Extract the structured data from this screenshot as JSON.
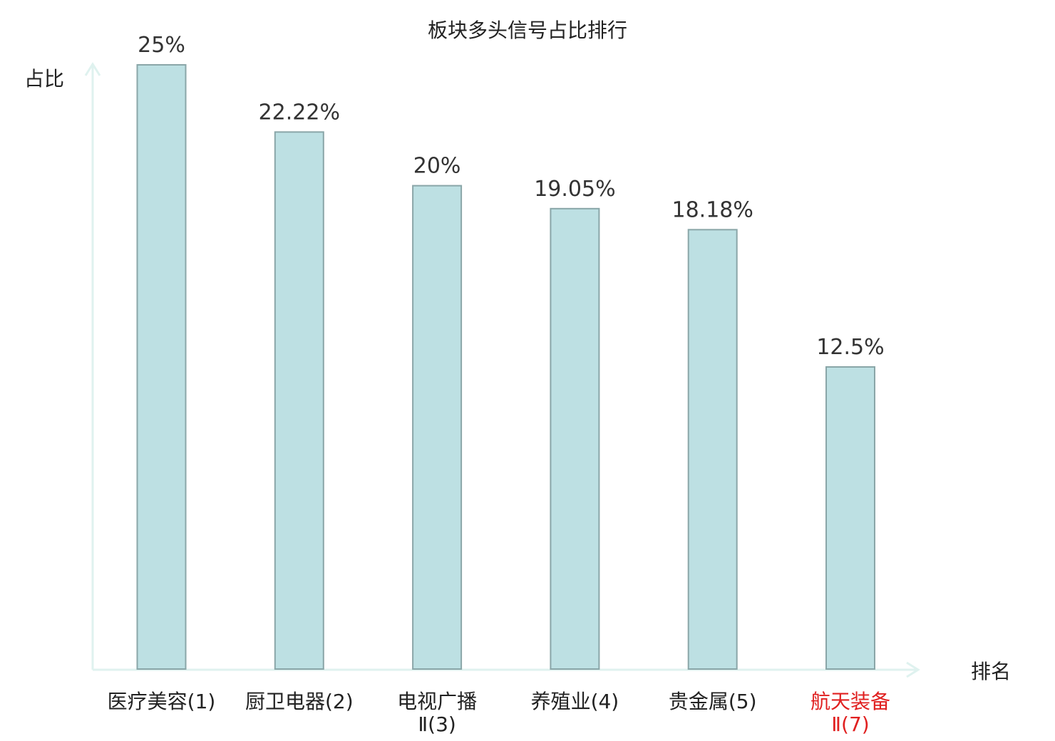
{
  "chart_data": {
    "type": "bar",
    "title": "板块多头信号占比排行",
    "ylabel": "占比",
    "xlabel": "排名",
    "categories": [
      {
        "line1": "医疗美容(1)",
        "line2": "",
        "highlight": false
      },
      {
        "line1": "厨卫电器(2)",
        "line2": "",
        "highlight": false
      },
      {
        "line1": "电视广播",
        "line2": "Ⅱ(3)",
        "highlight": false
      },
      {
        "line1": "养殖业(4)",
        "line2": "",
        "highlight": false
      },
      {
        "line1": "贵金属(5)",
        "line2": "",
        "highlight": false
      },
      {
        "line1": "航天装备",
        "line2": "Ⅱ(7)",
        "highlight": true
      }
    ],
    "values": [
      25,
      22.22,
      20,
      19.05,
      18.18,
      12.5
    ],
    "value_labels": [
      "25%",
      "22.22%",
      "20%",
      "19.05%",
      "18.18%",
      "12.5%"
    ],
    "ylim": [
      0,
      25
    ],
    "grid": false,
    "colors": {
      "bar_fill": "#bde0e3",
      "bar_stroke": "#8aa6a8",
      "axis": "#dff2ef",
      "highlight_text": "#e02020"
    }
  }
}
